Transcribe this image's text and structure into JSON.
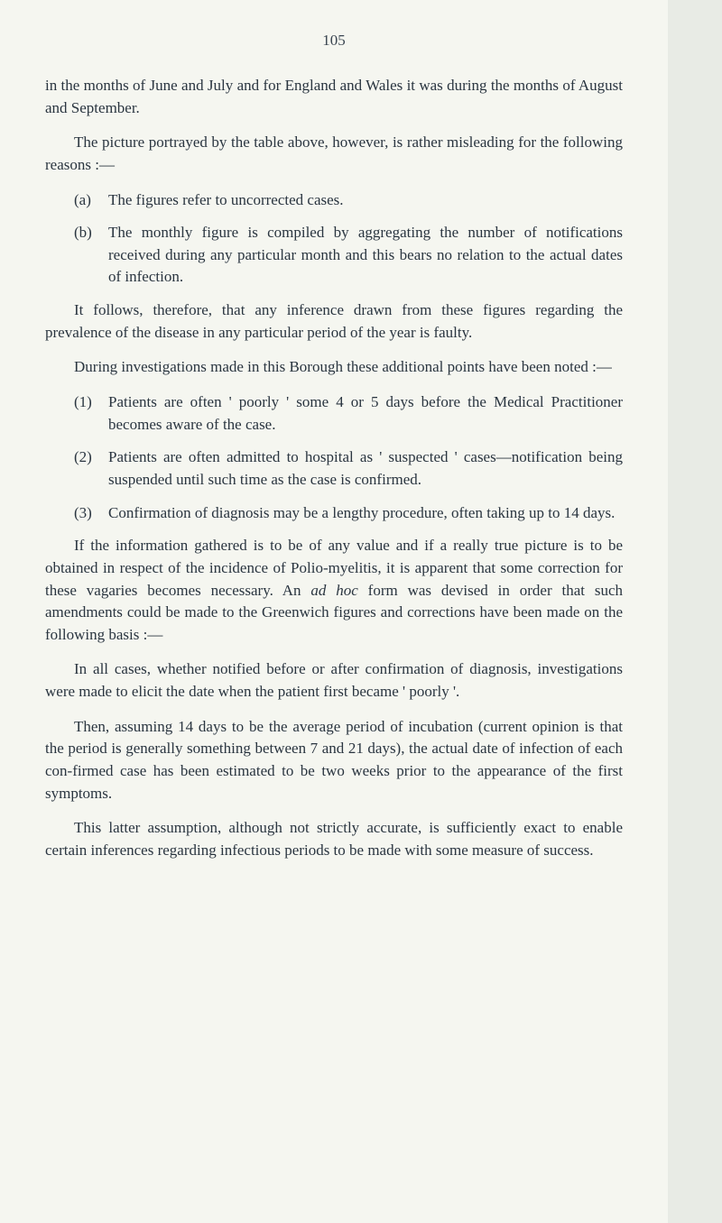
{
  "pageNumber": "105",
  "para1": "in the months of June and July and for England and Wales it was during the months of August and September.",
  "para2": "The picture portrayed by the table above, however, is rather misleading for the following reasons :—",
  "listA": {
    "marker": "(a)",
    "text": "The figures refer to uncorrected cases."
  },
  "listB": {
    "marker": "(b)",
    "text": "The monthly figure is compiled by aggregating the number of notifications received during any particular month and this bears no relation to the actual dates of infection."
  },
  "para3": "It follows, therefore, that any inference drawn from these figures regarding the prevalence of the disease in any particular period of the year is faulty.",
  "para4": "During investigations made in this Borough these additional points have been noted :—",
  "list1": {
    "marker": "(1)",
    "text": "Patients are often ' poorly ' some 4 or 5 days before the Medical Practitioner becomes aware of the case."
  },
  "list2": {
    "marker": "(2)",
    "text": "Patients are often admitted to hospital as ' suspected ' cases—notification being suspended until such time as the case is confirmed."
  },
  "list3": {
    "marker": "(3)",
    "text": "Confirmation of diagnosis may be a lengthy procedure, often taking up to 14 days."
  },
  "para5_before": "If the information gathered is to be of any value and if a really true picture is to be obtained in respect of the incidence of Polio-myelitis, it is apparent that some correction for these vagaries becomes necessary. An ",
  "para5_italic": "ad hoc",
  "para5_after": " form was devised in order that such amendments could be made to the Greenwich figures and corrections have been made on the following basis :—",
  "para6": "In all cases, whether notified before or after confirmation of diagnosis, investigations were made to elicit the date when the patient first became ' poorly '.",
  "para7": "Then, assuming 14 days to be the average period of incubation (current opinion is that the period is generally something between 7 and 21 days), the actual date of infection of each con-firmed case has been estimated to be two weeks prior to the appearance of the first symptoms.",
  "para8": "This latter assumption, although not strictly accurate, is sufficiently exact to enable certain inferences regarding infectious periods to be made with some measure of success."
}
